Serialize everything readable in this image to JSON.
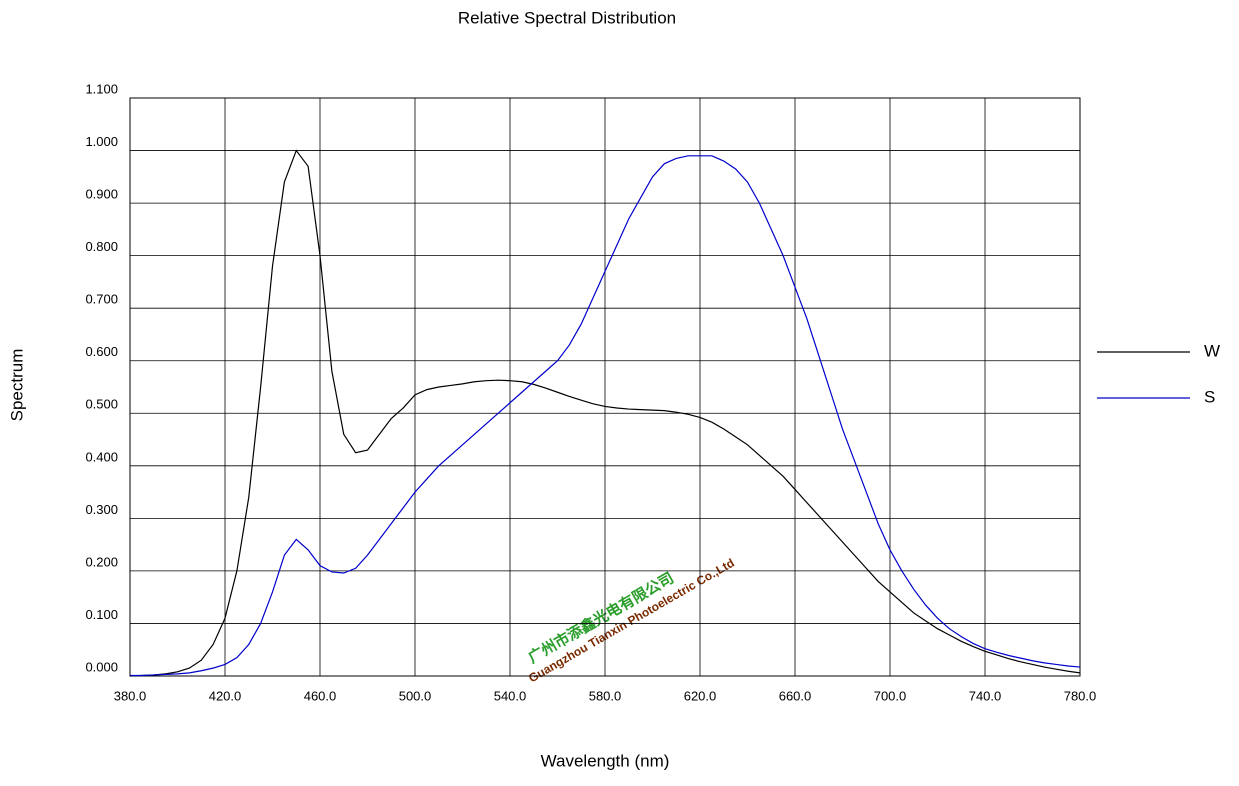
{
  "chart_data": {
    "type": "line",
    "title": "Relative Spectral Distribution",
    "x_label": "Wavelength (nm)",
    "y_label": "Spectrum",
    "annotations": [
      "广州市添鑫光电有限公司",
      "Guangzhou Tianxin Photoelectric Co.,Ltd"
    ],
    "x": [
      380,
      385,
      390,
      395,
      400,
      405,
      410,
      415,
      420,
      425,
      430,
      435,
      440,
      445,
      450,
      455,
      460,
      465,
      470,
      475,
      480,
      485,
      490,
      495,
      500,
      505,
      510,
      515,
      520,
      525,
      530,
      535,
      540,
      545,
      550,
      555,
      560,
      565,
      570,
      575,
      580,
      585,
      590,
      595,
      600,
      605,
      610,
      615,
      620,
      625,
      630,
      635,
      640,
      645,
      650,
      655,
      660,
      665,
      670,
      675,
      680,
      685,
      690,
      695,
      700,
      705,
      710,
      715,
      720,
      725,
      730,
      735,
      740,
      745,
      750,
      755,
      760,
      765,
      770,
      775,
      780
    ],
    "series": [
      {
        "name": "W",
        "color": "#000000",
        "values": [
          0.0,
          0.001,
          0.002,
          0.004,
          0.008,
          0.015,
          0.03,
          0.06,
          0.11,
          0.2,
          0.34,
          0.55,
          0.78,
          0.94,
          1.0,
          0.97,
          0.8,
          0.58,
          0.46,
          0.425,
          0.43,
          0.46,
          0.49,
          0.51,
          0.535,
          0.545,
          0.55,
          0.553,
          0.556,
          0.56,
          0.562,
          0.563,
          0.562,
          0.56,
          0.555,
          0.548,
          0.54,
          0.532,
          0.525,
          0.518,
          0.513,
          0.51,
          0.508,
          0.507,
          0.506,
          0.505,
          0.502,
          0.498,
          0.492,
          0.483,
          0.47,
          0.455,
          0.44,
          0.42,
          0.4,
          0.38,
          0.355,
          0.33,
          0.305,
          0.28,
          0.255,
          0.23,
          0.205,
          0.18,
          0.16,
          0.14,
          0.12,
          0.105,
          0.09,
          0.078,
          0.066,
          0.056,
          0.047,
          0.04,
          0.033,
          0.027,
          0.022,
          0.017,
          0.013,
          0.009,
          0.006
        ]
      },
      {
        "name": "S",
        "color": "#0000cc",
        "values": [
          0.001,
          0.001,
          0.002,
          0.003,
          0.004,
          0.006,
          0.01,
          0.015,
          0.022,
          0.035,
          0.06,
          0.1,
          0.16,
          0.23,
          0.26,
          0.24,
          0.21,
          0.198,
          0.196,
          0.205,
          0.23,
          0.26,
          0.29,
          0.32,
          0.35,
          0.375,
          0.4,
          0.42,
          0.44,
          0.46,
          0.48,
          0.5,
          0.52,
          0.54,
          0.56,
          0.58,
          0.6,
          0.63,
          0.67,
          0.72,
          0.77,
          0.82,
          0.87,
          0.91,
          0.95,
          0.975,
          0.985,
          0.99,
          0.99,
          0.99,
          0.98,
          0.965,
          0.94,
          0.9,
          0.85,
          0.8,
          0.74,
          0.68,
          0.61,
          0.54,
          0.47,
          0.41,
          0.35,
          0.29,
          0.24,
          0.2,
          0.165,
          0.135,
          0.11,
          0.09,
          0.075,
          0.062,
          0.052,
          0.045,
          0.039,
          0.034,
          0.029,
          0.025,
          0.022,
          0.019,
          0.017
        ]
      }
    ],
    "xlim": [
      380,
      780
    ],
    "ylim": [
      0,
      1.1
    ],
    "xticks": [
      {
        "value": 380,
        "label": "380.0"
      },
      {
        "value": 420,
        "label": "420.0"
      },
      {
        "value": 460,
        "label": "460.0"
      },
      {
        "value": 500,
        "label": "500.0"
      },
      {
        "value": 540,
        "label": "540.0"
      },
      {
        "value": 580,
        "label": "580.0"
      },
      {
        "value": 620,
        "label": "620.0"
      },
      {
        "value": 660,
        "label": "660.0"
      },
      {
        "value": 700,
        "label": "700.0"
      },
      {
        "value": 740,
        "label": "740.0"
      },
      {
        "value": 780,
        "label": "780.0"
      }
    ],
    "yticks": [
      {
        "value": 0,
        "label": "0.000"
      },
      {
        "value": 0.1,
        "label": "0.100"
      },
      {
        "value": 0.2,
        "label": "0.200"
      },
      {
        "value": 0.3,
        "label": "0.300"
      },
      {
        "value": 0.4,
        "label": "0.400"
      },
      {
        "value": 0.5,
        "label": "0.500"
      },
      {
        "value": 0.6,
        "label": "0.600"
      },
      {
        "value": 0.7,
        "label": "0.700"
      },
      {
        "value": 0.8,
        "label": "0.800"
      },
      {
        "value": 0.9,
        "label": "0.900"
      },
      {
        "value": 1.0,
        "label": "1.000"
      },
      {
        "value": 1.1,
        "label": "1.100"
      }
    ],
    "grid": true,
    "legend": "right"
  }
}
